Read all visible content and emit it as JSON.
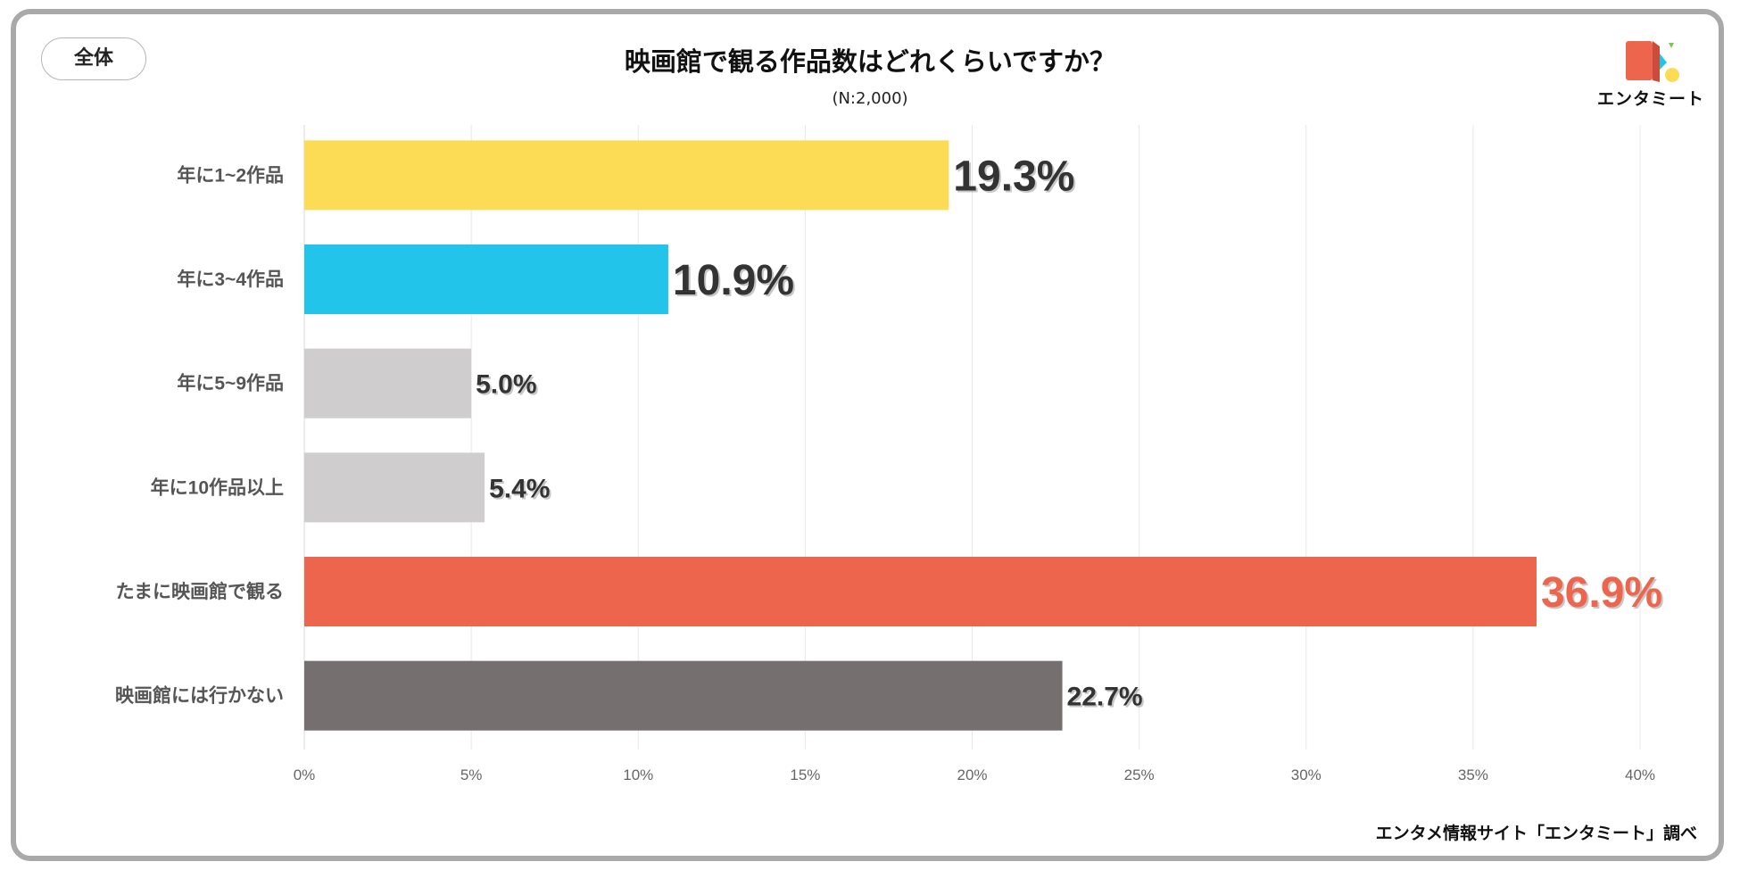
{
  "badge": "全体",
  "title": "映画館で観る作品数はどれくらいですか？",
  "subtitle": "(N:2,000)",
  "source": "エンタメ情報サイト「エンタミート」調べ",
  "logo": {
    "text": "エンタミート"
  },
  "chart_data": {
    "type": "bar",
    "orientation": "horizontal",
    "title": "映画館で観る作品数はどれくらいですか？",
    "xlabel": "",
    "ylabel": "",
    "xlim": [
      0,
      40
    ],
    "x_ticks": [
      0,
      5,
      10,
      15,
      20,
      25,
      30,
      35,
      40
    ],
    "x_tick_labels": [
      "0%",
      "5%",
      "10%",
      "15%",
      "20%",
      "25%",
      "30%",
      "35%",
      "40%"
    ],
    "grid": true,
    "categories": [
      "年に1~2作品",
      "年に3~4作品",
      "年に5~9作品",
      "年に10作品以上",
      "たまに映画館で観る",
      "映画館には行かない"
    ],
    "values": [
      19.3,
      10.9,
      5.0,
      5.4,
      36.9,
      22.7
    ],
    "value_labels": [
      "19.3%",
      "10.9%",
      "5.0%",
      "5.4%",
      "36.9%",
      "22.7%"
    ],
    "colors": [
      "#FDDC55",
      "#23C4EA",
      "#CFCDCD",
      "#CFCDCD",
      "#EE654E",
      "#756F6F"
    ],
    "label_colors": [
      "#333333",
      "#333333",
      "#333333",
      "#333333",
      "#EE654E",
      "#333333"
    ],
    "label_emphasis": [
      "large",
      "large",
      "small",
      "small",
      "large",
      "small"
    ]
  }
}
